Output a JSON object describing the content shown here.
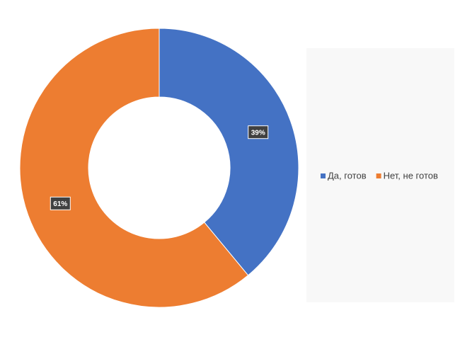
{
  "chart_data": {
    "type": "pie",
    "categories": [
      "Да, готов",
      "Нет, не готов"
    ],
    "values": [
      39,
      61
    ],
    "value_labels": [
      "39%",
      "61%"
    ],
    "colors": [
      "#4472c4",
      "#ed7d31"
    ],
    "legend": "right"
  }
}
